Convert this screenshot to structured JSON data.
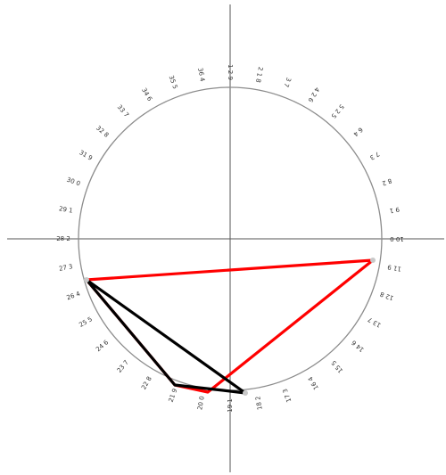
{
  "diagram": {
    "note": "",
    "colors": {
      "circle": "#8c8c8c",
      "axes": "#555555",
      "red_polygon": "#ff0000",
      "black_polygon": "#000000",
      "labels": "#333333"
    },
    "scale_labels": [
      "1 2 9",
      "2 1 8",
      "3 7",
      "4 2 6",
      "5 2 5",
      "6 4",
      "7 3",
      "8 2",
      "9 1",
      "10 0",
      "11 9",
      "12 8",
      "13 7",
      "14 6",
      "15 5",
      "16 4",
      "17 3",
      "18 2",
      "19 1",
      "20 0",
      "21 9",
      "22 8",
      "23 7",
      "24 6",
      "25 5",
      "26 4",
      "27 3",
      "28 2",
      "29 1",
      "30 0",
      "31 9",
      "32 8",
      "33 7",
      "34 6",
      "35 5",
      "36 4"
    ]
  }
}
